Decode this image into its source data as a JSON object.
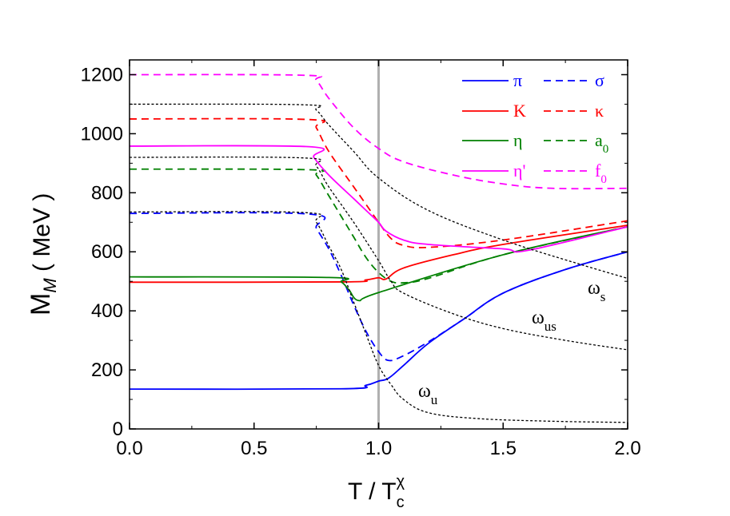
{
  "chart_data": {
    "type": "line",
    "xlabel": {
      "main": "T / T",
      "sub": "c",
      "sup": "χ"
    },
    "ylabel": {
      "main": "M",
      "sub": "M",
      "unit": " ( MeV )"
    },
    "xlim": [
      0,
      2.0
    ],
    "ylim": [
      0,
      1250
    ],
    "xticks": [
      "0.0",
      "0.5",
      "1.0",
      "1.5",
      "2.0"
    ],
    "yticks": [
      "0",
      "200",
      "400",
      "600",
      "800",
      "1000",
      "1200"
    ],
    "grid": false,
    "legend_position": "top-right",
    "vertical_line": {
      "x": 1.0,
      "color": "#b0b0b0"
    },
    "series": [
      {
        "name": "π",
        "color": "#0000ff",
        "style": "solid",
        "x": [
          0,
          0.85,
          0.95,
          1.0,
          1.04,
          1.1,
          1.2,
          1.34,
          1.5,
          1.75,
          2.0
        ],
        "y": [
          135,
          136,
          148,
          162,
          172,
          215,
          290,
          371,
          460,
          540,
          600
        ]
      },
      {
        "name": "σ",
        "color": "#0000ff",
        "style": "dashed",
        "x": [
          0,
          0.72,
          0.75,
          0.8,
          0.85,
          0.9,
          0.95,
          1.0,
          1.04,
          1.1,
          1.2,
          1.34,
          1.5,
          1.75,
          2.0
        ],
        "y": [
          730,
          728,
          680,
          610,
          520,
          420,
          330,
          262,
          232,
          248,
          295,
          371,
          460,
          540,
          600
        ]
      },
      {
        "name": "K",
        "color": "#ff0000",
        "style": "solid",
        "x": [
          0,
          0.85,
          0.95,
          1.0,
          1.03,
          1.1,
          1.3,
          1.5,
          2.0
        ],
        "y": [
          497,
          498,
          505,
          512,
          508,
          545,
          590,
          625,
          690
        ]
      },
      {
        "name": "κ",
        "color": "#ff0000",
        "style": "dashed",
        "x": [
          0,
          0.72,
          0.75,
          0.8,
          0.9,
          0.95,
          1.0,
          1.05,
          1.1,
          1.2,
          1.5,
          2.0
        ],
        "y": [
          1050,
          1048,
          1020,
          940,
          820,
          760,
          700,
          645,
          622,
          615,
          640,
          705
        ]
      },
      {
        "name": "η",
        "color": "#008000",
        "style": "solid",
        "x": [
          0,
          0.8,
          0.85,
          0.88,
          0.92,
          1.0,
          1.5,
          2.0
        ],
        "y": [
          515,
          513,
          498,
          472,
          435,
          462,
          590,
          685
        ]
      },
      {
        "name": "a0",
        "label_main": "a",
        "label_sub": "0",
        "color": "#008000",
        "style": "dashed",
        "x": [
          0,
          0.72,
          0.75,
          0.8,
          0.85,
          0.9,
          0.95,
          1.0,
          1.05,
          1.1,
          1.2,
          1.5,
          2.0
        ],
        "y": [
          880,
          878,
          860,
          790,
          720,
          650,
          580,
          530,
          500,
          495,
          510,
          590,
          685
        ]
      },
      {
        "name": "η'",
        "color": "#ff00ff",
        "style": "solid",
        "x": [
          0,
          0.72,
          0.74,
          0.8,
          0.9,
          0.95,
          1.0,
          1.03,
          1.1,
          1.2,
          1.5,
          1.6,
          2.0
        ],
        "y": [
          958,
          956,
          920,
          860,
          780,
          740,
          700,
          670,
          640,
          625,
          610,
          605,
          685
        ]
      },
      {
        "name": "f0",
        "label_main": "f",
        "label_sub": "0",
        "color": "#ff00ff",
        "style": "dashed",
        "x": [
          0,
          0.7,
          0.75,
          0.8,
          0.9,
          1.0,
          1.1,
          1.3,
          1.5,
          1.7,
          2.0
        ],
        "y": [
          1200,
          1198,
          1180,
          1120,
          1020,
          950,
          905,
          860,
          830,
          815,
          815
        ]
      },
      {
        "name": "ω_s",
        "label_main": "ω",
        "label_sub": "s",
        "color": "#000000",
        "style": "dotted",
        "x": [
          0,
          0.7,
          0.75,
          0.8,
          0.9,
          1.0,
          1.2,
          1.5,
          1.8,
          2.0
        ],
        "y": [
          1100,
          1098,
          1080,
          1030,
          940,
          850,
          740,
          640,
          560,
          510
        ]
      },
      {
        "name": "ω_us",
        "label_main": "ω",
        "label_sub": "us",
        "color": "#000000",
        "style": "dotted",
        "x": [
          0,
          0.7,
          0.75,
          0.8,
          0.9,
          1.0,
          1.05,
          1.1,
          1.3,
          1.5,
          1.75,
          2.0
        ],
        "y": [
          920,
          918,
          890,
          820,
          700,
          570,
          500,
          460,
          390,
          340,
          300,
          268
        ]
      },
      {
        "name": "ω_u",
        "label_main": "ω",
        "label_sub": "u",
        "color": "#000000",
        "style": "dotted",
        "x": [
          0,
          0.7,
          0.75,
          0.8,
          0.85,
          0.9,
          0.95,
          1.0,
          1.05,
          1.1,
          1.2,
          1.4,
          1.7,
          2.0
        ],
        "y": [
          735,
          733,
          700,
          620,
          540,
          430,
          320,
          215,
          150,
          100,
          55,
          35,
          26,
          22
        ]
      }
    ]
  }
}
